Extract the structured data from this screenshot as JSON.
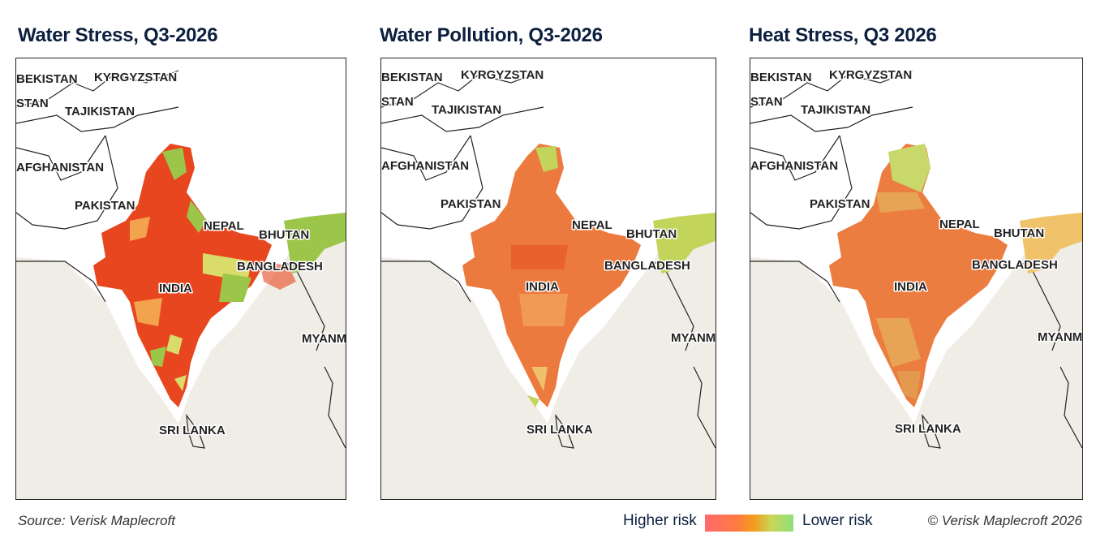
{
  "panels": [
    {
      "title": "Water Stress, Q3-2026",
      "labels": {
        "uzbekistan": "BEKISTAN",
        "kyrgyzstan": "KYRGYZSTAN",
        "stan": "STAN",
        "tajikistan": "TAJIKISTAN",
        "afghanistan": "AFGHANISTAN",
        "pakistan": "PAKISTAN",
        "nepal": "NEPAL",
        "bhutan": "BHUTAN",
        "bangladesh": "BANGLADESH",
        "india": "INDIA",
        "myanmar": "MYANM",
        "srilanka": "SRI LANKA"
      },
      "colors": {
        "main": "#e8461f",
        "accent": "#9cc64a"
      }
    },
    {
      "title": "Water Pollution, Q3-2026",
      "labels": {
        "uzbekistan": "BEKISTAN",
        "kyrgyzstan": "KYRGYZSTAN",
        "stan": "STAN",
        "tajikistan": "TAJIKISTAN",
        "afghanistan": "AFGHANISTAN",
        "pakistan": "PAKISTAN",
        "nepal": "NEPAL",
        "bhutan": "BHUTAN",
        "bangladesh": "BANGLADESH",
        "india": "INDIA",
        "myanmar": "MYANM",
        "srilanka": "SRI LANKA"
      },
      "colors": {
        "main": "#ec7a3e",
        "accent": "#c2d45a"
      }
    },
    {
      "title": "Heat Stress, Q3 2026",
      "labels": {
        "uzbekistan": "BEKISTAN",
        "kyrgyzstan": "KYRGYZSTAN",
        "stan": "STAN",
        "tajikistan": "TAJIKISTAN",
        "afghanistan": "AFGHANISTAN",
        "pakistan": "PAKISTAN",
        "nepal": "NEPAL",
        "bhutan": "BHUTAN",
        "bangladesh": "BANGLADESH",
        "india": "INDIA",
        "myanmar": "MYANM",
        "srilanka": "SRI LANKA"
      },
      "colors": {
        "main": "#ec7d40",
        "accent": "#c8d86a"
      }
    }
  ],
  "legend": {
    "higher": "Higher risk",
    "lower": "Lower risk",
    "gradient_colors": [
      "#ff6a6a",
      "#f39a1c",
      "#8fe07a"
    ]
  },
  "footer": {
    "source": "Source: Verisk Maplecroft",
    "copyright": "© Verisk Maplecroft 2026"
  },
  "colors": {
    "sea": "#f0ede6",
    "land": "#ffffff",
    "border": "#222222",
    "title": "#0c1f3f"
  }
}
